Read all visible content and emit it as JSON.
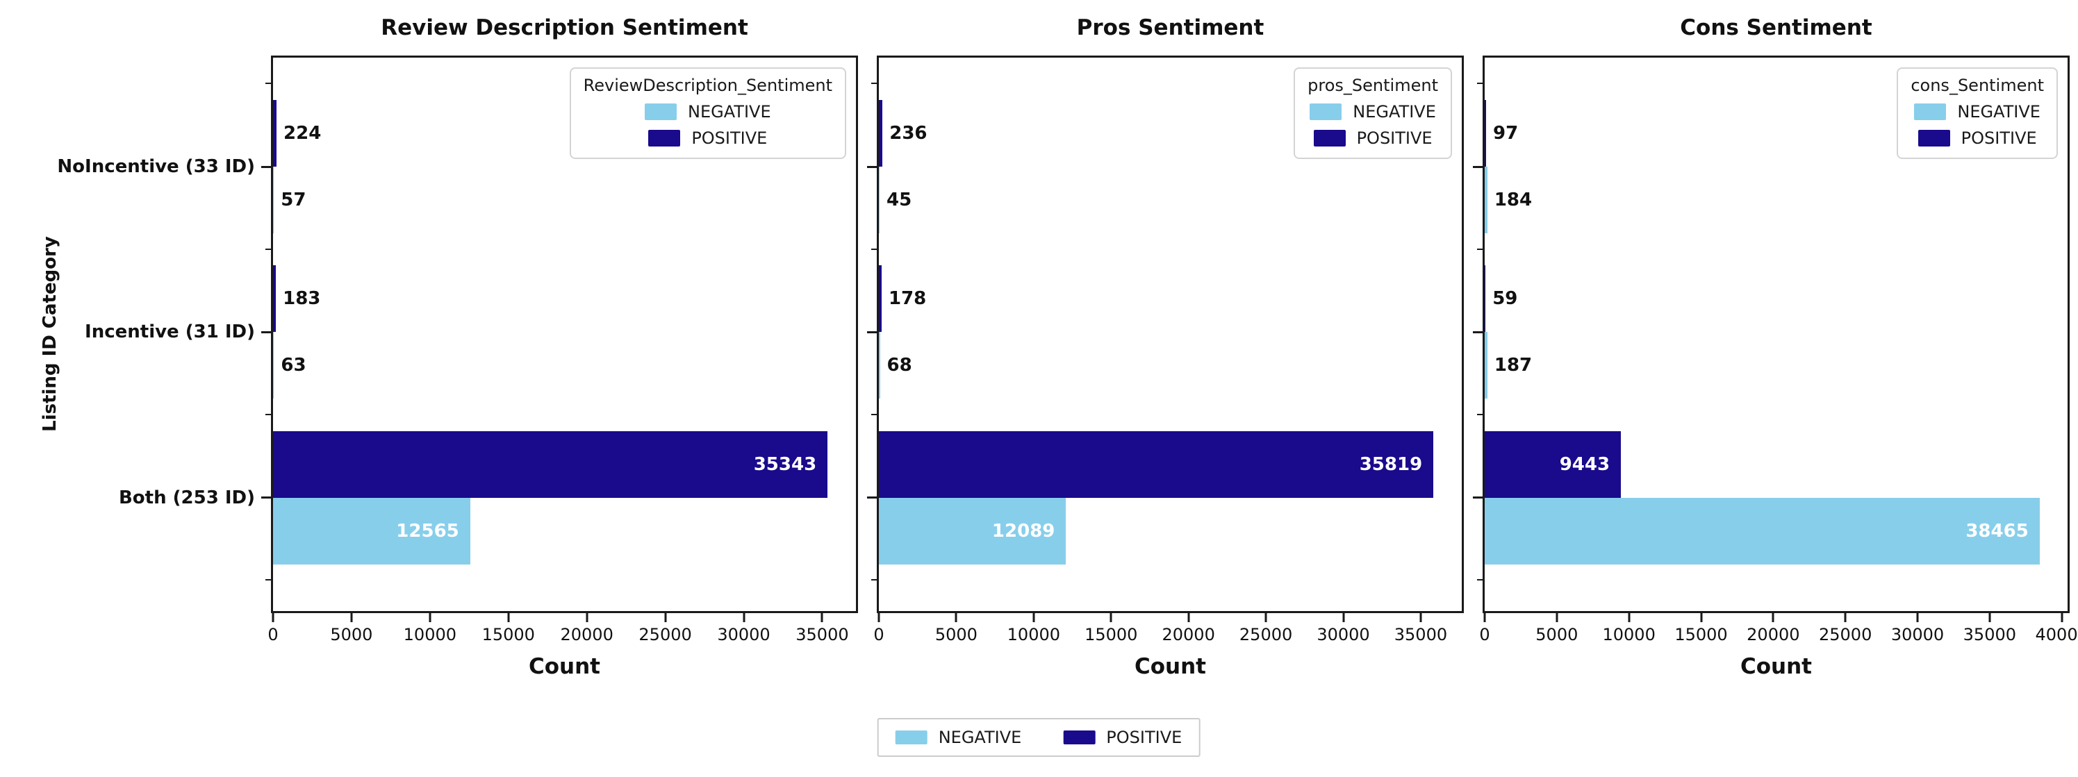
{
  "figure": {
    "ylabel": "Listing ID Category",
    "frame_color": "#1a1a1a",
    "bottom_legend": {
      "entries": [
        {
          "label": "NEGATIVE",
          "color": "#87CEEB"
        },
        {
          "label": "POSITIVE",
          "color": "#1A0A8C"
        }
      ]
    }
  },
  "chart_data": [
    {
      "type": "bar",
      "orientation": "horizontal",
      "title": "Review Description Sentiment",
      "xlabel": "Count",
      "ylabel": "Listing ID Category",
      "grid": false,
      "categories": [
        "NoIncentive (33 ID)",
        "Incentive (31 ID)",
        "Both (253 ID)"
      ],
      "series": [
        {
          "name": "POSITIVE",
          "color": "#1A0A8C",
          "values": [
            224,
            183,
            35343
          ]
        },
        {
          "name": "NEGATIVE",
          "color": "#87CEEB",
          "values": [
            57,
            63,
            12565
          ]
        }
      ],
      "legend": {
        "title": "ReviewDescription_Sentiment",
        "entries": [
          "NEGATIVE",
          "POSITIVE"
        ],
        "position": "upper right"
      },
      "xticks": [
        0,
        5000,
        10000,
        15000,
        20000,
        25000,
        30000,
        35000
      ],
      "xlim": [
        0,
        37150
      ],
      "show_category_labels": true
    },
    {
      "type": "bar",
      "orientation": "horizontal",
      "title": "Pros Sentiment",
      "xlabel": "Count",
      "grid": false,
      "categories": [
        "NoIncentive (33 ID)",
        "Incentive (31 ID)",
        "Both (253 ID)"
      ],
      "series": [
        {
          "name": "POSITIVE",
          "color": "#1A0A8C",
          "values": [
            236,
            178,
            35819
          ]
        },
        {
          "name": "NEGATIVE",
          "color": "#87CEEB",
          "values": [
            45,
            68,
            12089
          ]
        }
      ],
      "legend": {
        "title": "pros_Sentiment",
        "entries": [
          "NEGATIVE",
          "POSITIVE"
        ],
        "position": "upper right"
      },
      "xticks": [
        0,
        5000,
        10000,
        15000,
        20000,
        25000,
        30000,
        35000
      ],
      "xlim": [
        0,
        37650
      ],
      "show_category_labels": false
    },
    {
      "type": "bar",
      "orientation": "horizontal",
      "title": "Cons Sentiment",
      "xlabel": "Count",
      "grid": false,
      "categories": [
        "NoIncentive (33 ID)",
        "Incentive (31 ID)",
        "Both (253 ID)"
      ],
      "series": [
        {
          "name": "POSITIVE",
          "color": "#1A0A8C",
          "values": [
            97,
            59,
            9443
          ]
        },
        {
          "name": "NEGATIVE",
          "color": "#87CEEB",
          "values": [
            184,
            187,
            38465
          ]
        }
      ],
      "legend": {
        "title": "cons_Sentiment",
        "entries": [
          "NEGATIVE",
          "POSITIVE"
        ],
        "position": "upper right"
      },
      "xticks": [
        0,
        5000,
        10000,
        15000,
        20000,
        25000,
        30000,
        35000,
        40000
      ],
      "xlim": [
        0,
        40400
      ],
      "show_category_labels": false
    }
  ]
}
